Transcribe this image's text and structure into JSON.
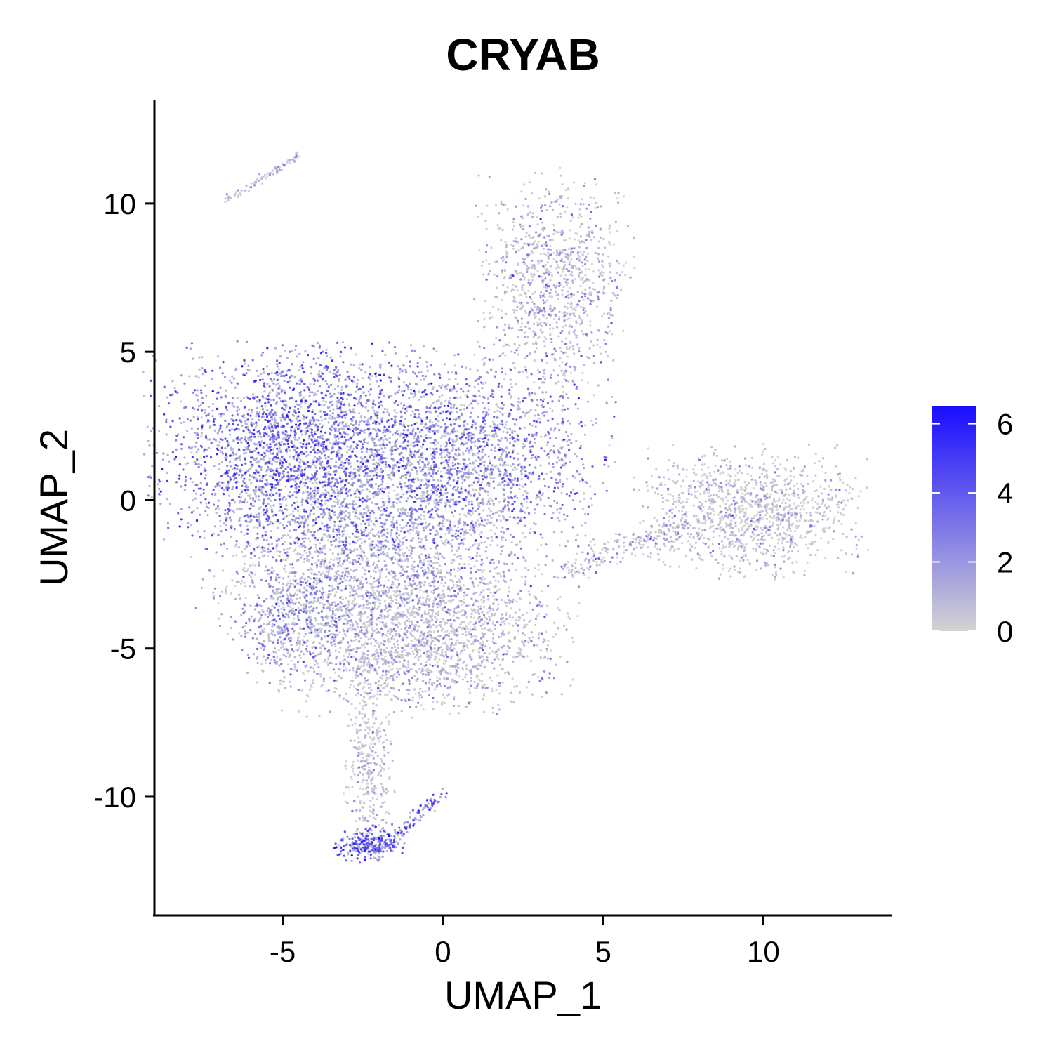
{
  "chart_data": {
    "type": "scatter",
    "title": "CRYAB",
    "xlabel": "UMAP_1",
    "ylabel": "UMAP_2",
    "xlim": [
      -9,
      14
    ],
    "ylim": [
      -14,
      13.5
    ],
    "xticks": [
      -5,
      0,
      5,
      10
    ],
    "yticks": [
      -10,
      -5,
      0,
      5,
      10
    ],
    "grid": false,
    "legend": {
      "position": "right",
      "min": 0,
      "max": 6.5,
      "ticks": [
        0,
        2,
        4,
        6
      ],
      "low_color": "#d3d3d3",
      "high_color": "#1a0dff"
    },
    "clusters": [
      {
        "label_region": "main-upper-left",
        "cx": -4.3,
        "cy": 1.8,
        "sx": 2.2,
        "sy": 1.6,
        "n": 2600,
        "mean_expr": 3.6
      },
      {
        "label_region": "main-upper-right",
        "cx": 0.8,
        "cy": 1.5,
        "sx": 2.0,
        "sy": 1.6,
        "n": 1800,
        "mean_expr": 2.8
      },
      {
        "label_region": "main-middle",
        "cx": -2.2,
        "cy": -2.2,
        "sx": 2.4,
        "sy": 1.6,
        "n": 2200,
        "mean_expr": 1.4
      },
      {
        "label_region": "main-lower",
        "cx": -0.8,
        "cy": -4.8,
        "sx": 2.2,
        "sy": 1.1,
        "n": 1600,
        "mean_expr": 0.9
      },
      {
        "label_region": "main-lower-left-edge",
        "cx": -4.9,
        "cy": -4.3,
        "sx": 0.7,
        "sy": 0.9,
        "n": 300,
        "mean_expr": 3.0
      },
      {
        "label_region": "stem",
        "cx": -2.3,
        "cy": -8.6,
        "sx": 0.35,
        "sy": 1.5,
        "n": 350,
        "mean_expr": 0.5
      },
      {
        "label_region": "bottom-tip",
        "cx": -2.3,
        "cy": -11.6,
        "sx": 0.5,
        "sy": 0.3,
        "n": 350,
        "mean_expr": 4.0
      },
      {
        "label_region": "upper-cluster",
        "cx": 3.5,
        "cy": 7.3,
        "sx": 1.1,
        "sy": 1.7,
        "n": 1000,
        "mean_expr": 1.1
      },
      {
        "label_region": "right-cluster",
        "cx": 9.6,
        "cy": -0.4,
        "sx": 1.6,
        "sy": 1.0,
        "n": 1200,
        "mean_expr": 0.5
      },
      {
        "label_region": "right-bridge",
        "cx": 6.5,
        "cy": -1.3,
        "sx": 0.9,
        "sy": 0.4,
        "n": 200,
        "mean_expr": 1.2
      },
      {
        "label_region": "top-left-strand",
        "cx": -5.8,
        "cy": 10.9,
        "sx": 0.7,
        "sy": 0.2,
        "n": 80,
        "mean_expr": 0.9
      }
    ]
  }
}
